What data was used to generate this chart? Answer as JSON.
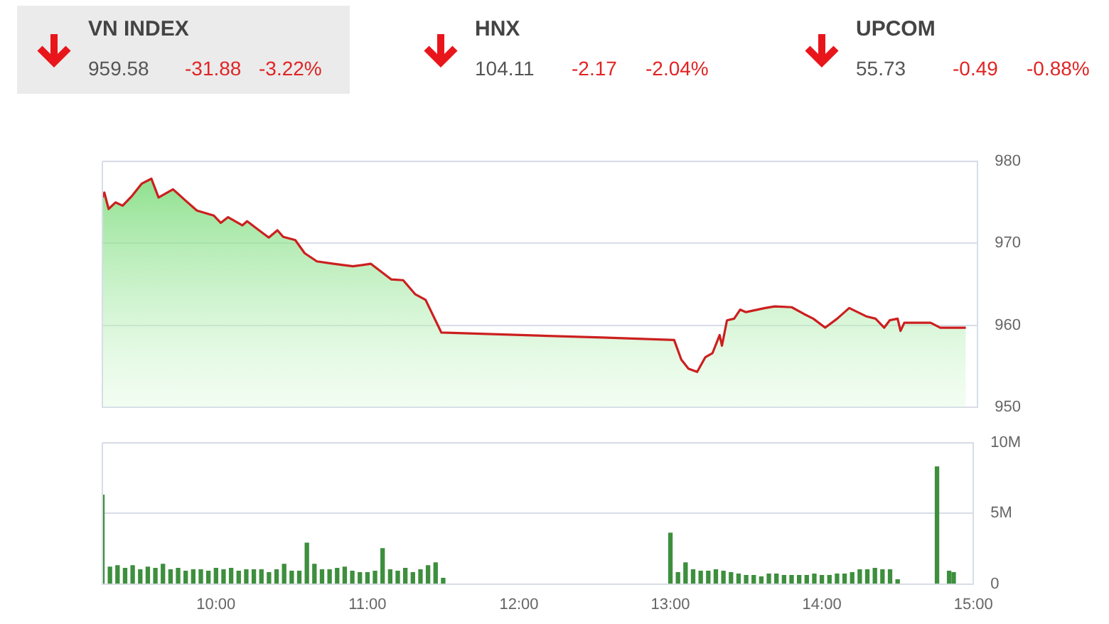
{
  "chart_data": [
    {
      "type": "other",
      "categories": [
        "VN INDEX",
        "HNX",
        "UPCOM"
      ],
      "annotations": [
        "959.58",
        "-31.88",
        "-3.22%",
        "104.11",
        "-2.17",
        "-2.04%",
        "55.73",
        "-0.49",
        "-0.88%"
      ]
    },
    {
      "type": "area",
      "tick_labels": "y",
      "grid": "y",
      "legend": false,
      "xlim": [
        9.25,
        15
      ],
      "ylim": [
        950,
        980
      ],
      "yticks": [
        950,
        960,
        970,
        980
      ],
      "series": [
        {
          "color": "#cc1f1f",
          "x": [
            9.25,
            9.263,
            9.291,
            9.336,
            9.383,
            9.445,
            9.509,
            9.572,
            9.619,
            9.714,
            9.792,
            9.871,
            9.981,
            10.028,
            10.076,
            10.17,
            10.201,
            10.265,
            10.343,
            10.4,
            10.438,
            10.517,
            10.579,
            10.659,
            10.768,
            10.895,
            11.014,
            11.147,
            11.226,
            11.304,
            11.373,
            11.477,
            12.533,
            13.006,
            13.053,
            13.1,
            13.157,
            13.211,
            13.258,
            13.305,
            13.32,
            13.353,
            13.4,
            13.44,
            13.478,
            13.604,
            13.667,
            13.778,
            13.856,
            13.92,
            13.998,
            14.077,
            14.156,
            14.266,
            14.329,
            14.386,
            14.422,
            14.474,
            14.493,
            14.518,
            14.691,
            14.754,
            14.922
          ],
          "values": [
            975.6,
            976.2,
            974.2,
            975,
            974.6,
            975.8,
            977.3,
            977.9,
            975.6,
            976.6,
            975.3,
            974,
            973.4,
            972.5,
            973.2,
            972.2,
            972.7,
            971.8,
            970.7,
            971.6,
            970.8,
            970.4,
            968.8,
            967.8,
            967.5,
            967.2,
            967.5,
            965.6,
            965.5,
            963.8,
            963.1,
            959.1,
            958.5,
            958.2,
            955.8,
            954.7,
            954.3,
            956.1,
            956.6,
            958.8,
            957.5,
            960.6,
            960.8,
            961.9,
            961.6,
            962.1,
            962.3,
            962.2,
            961.4,
            960.8,
            959.7,
            960.8,
            962.1,
            961.1,
            960.8,
            959.7,
            960.6,
            960.8,
            959.3,
            960.3,
            960.3,
            959.7,
            959.7
          ]
        }
      ]
    },
    {
      "type": "bar",
      "grid": "y",
      "legend": false,
      "xlim": [
        9.25,
        15
      ],
      "xticks": [
        {
          "value": 10,
          "label": "10:00"
        },
        {
          "value": 11,
          "label": "11:00"
        },
        {
          "value": 12,
          "label": "12:00"
        },
        {
          "value": 13,
          "label": "13:00"
        },
        {
          "value": 14,
          "label": "14:00"
        },
        {
          "value": 15,
          "label": "15:00"
        }
      ],
      "ylim": [
        0,
        10000000
      ],
      "yticks": [
        {
          "value": 0,
          "label": "0"
        },
        {
          "value": 5000000,
          "label": "5M"
        },
        {
          "value": 10000000,
          "label": "10M"
        }
      ],
      "series": [
        {
          "color": "#3d8f3d",
          "x": [
            9.25,
            9.3,
            9.35,
            9.4,
            9.45,
            9.5,
            9.55,
            9.6,
            9.65,
            9.7,
            9.75,
            9.8,
            9.85,
            9.9,
            9.95,
            10,
            10.05,
            10.1,
            10.15,
            10.2,
            10.25,
            10.3,
            10.35,
            10.4,
            10.45,
            10.5,
            10.55,
            10.6,
            10.65,
            10.7,
            10.75,
            10.8,
            10.85,
            10.9,
            10.95,
            11,
            11.05,
            11.1,
            11.15,
            11.2,
            11.25,
            11.3,
            11.35,
            11.4,
            11.45,
            11.5,
            13,
            13.05,
            13.1,
            13.15,
            13.2,
            13.25,
            13.3,
            13.35,
            13.4,
            13.45,
            13.5,
            13.55,
            13.6,
            13.65,
            13.7,
            13.75,
            13.8,
            13.85,
            13.9,
            13.95,
            14,
            14.05,
            14.1,
            14.15,
            14.2,
            14.25,
            14.3,
            14.35,
            14.4,
            14.45,
            14.5,
            14.76,
            14.84,
            14.87
          ],
          "values": [
            6300000,
            1200000,
            1300000,
            1100000,
            1300000,
            1000000,
            1200000,
            1100000,
            1400000,
            1000000,
            1100000,
            900000,
            1000000,
            1000000,
            900000,
            1100000,
            1000000,
            1100000,
            900000,
            1000000,
            1000000,
            1000000,
            800000,
            1000000,
            1400000,
            900000,
            900000,
            2900000,
            1400000,
            1000000,
            1000000,
            1100000,
            1200000,
            900000,
            800000,
            800000,
            900000,
            2500000,
            1000000,
            900000,
            1100000,
            800000,
            1000000,
            1300000,
            1500000,
            400000,
            3600000,
            800000,
            1500000,
            1000000,
            900000,
            900000,
            1000000,
            900000,
            800000,
            700000,
            600000,
            600000,
            500000,
            700000,
            700000,
            600000,
            600000,
            600000,
            600000,
            700000,
            600000,
            600000,
            700000,
            700000,
            800000,
            1000000,
            1000000,
            1100000,
            1000000,
            1000000,
            300000,
            8300000,
            900000,
            800000
          ]
        }
      ]
    }
  ]
}
